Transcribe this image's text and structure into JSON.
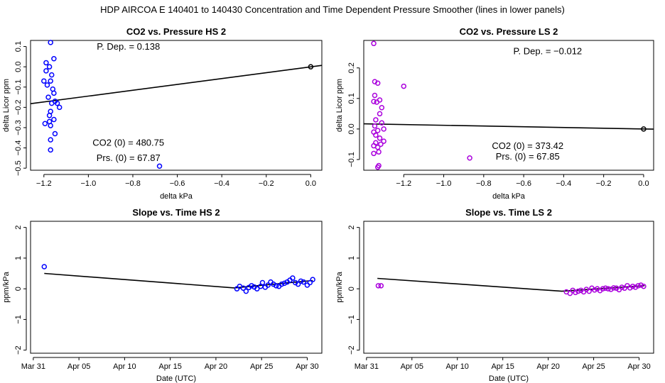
{
  "figure_title": "HDP   AIRCOA E   140401 to 140430   Concentration and Time Dependent Pressure Smoother (lines in lower panels)",
  "chart_data": [
    {
      "id": "p1",
      "type": "scatter",
      "title": "CO2 vs. Pressure HS 2",
      "xlabel": "delta kPa",
      "ylabel": "delta Licor ppm",
      "xlim": [
        -1.26,
        0.05
      ],
      "ylim": [
        -0.51,
        0.13
      ],
      "xticks": [
        -1.2,
        -1.0,
        -0.8,
        -0.6,
        -0.4,
        -0.2,
        0.0
      ],
      "xtick_labels": [
        "−1.2",
        "−1.0",
        "−0.8",
        "−0.6",
        "−0.4",
        "−0.2",
        "0.0"
      ],
      "yticks": [
        -0.5,
        -0.4,
        -0.3,
        -0.2,
        -0.1,
        0.0,
        0.1
      ],
      "ytick_labels": [
        "−0.5",
        "−0.4",
        "−0.3",
        "−0.2",
        "−0.1",
        "0.0",
        "0.1"
      ],
      "point_color": "#0000ff",
      "points": [
        [
          -1.17,
          0.12
        ],
        [
          -1.155,
          0.04
        ],
        [
          -1.19,
          0.02
        ],
        [
          -1.175,
          0.0
        ],
        [
          -1.19,
          -0.02
        ],
        [
          -1.165,
          -0.04
        ],
        [
          -1.2,
          -0.07
        ],
        [
          -1.17,
          -0.07
        ],
        [
          -1.185,
          -0.09
        ],
        [
          -1.16,
          -0.11
        ],
        [
          -1.155,
          -0.13
        ],
        [
          -1.18,
          -0.15
        ],
        [
          -1.15,
          -0.17
        ],
        [
          -1.165,
          -0.18
        ],
        [
          -1.14,
          -0.18
        ],
        [
          -1.13,
          -0.2
        ],
        [
          -1.17,
          -0.22
        ],
        [
          -1.175,
          -0.24
        ],
        [
          -1.155,
          -0.26
        ],
        [
          -1.175,
          -0.27
        ],
        [
          -1.195,
          -0.28
        ],
        [
          -1.17,
          -0.29
        ],
        [
          -1.15,
          -0.33
        ],
        [
          -1.17,
          -0.36
        ],
        [
          -1.17,
          -0.41
        ],
        [
          -0.68,
          -0.49
        ],
        [
          0.0,
          0.0
        ]
      ],
      "fit_line": [
        [
          -1.26,
          -0.182
        ],
        [
          0.05,
          0.007
        ]
      ],
      "annotations": [
        {
          "text": "P. Dep. =  0.138",
          "x": -0.82,
          "y": 0.085
        },
        {
          "text": "CO2 (0) =  480.75",
          "x": -0.82,
          "y": -0.39
        },
        {
          "text": "Prs. (0) =  67.87",
          "x": -0.82,
          "y": -0.465
        }
      ]
    },
    {
      "id": "p2",
      "type": "scatter",
      "title": "CO2 vs. Pressure LS 2",
      "xlabel": "delta kPa",
      "ylabel": "delta Licor ppm",
      "xlim": [
        -1.4,
        0.05
      ],
      "ylim": [
        -0.135,
        0.29
      ],
      "xticks": [
        -1.2,
        -1.0,
        -0.8,
        -0.6,
        -0.4,
        -0.2,
        0.0
      ],
      "xtick_labels": [
        "−1.2",
        "−1.0",
        "−0.8",
        "−0.6",
        "−0.4",
        "−0.2",
        "0.0"
      ],
      "yticks": [
        -0.1,
        0.0,
        0.1,
        0.2
      ],
      "ytick_labels": [
        "−0.1",
        "0.0",
        "0.1",
        "0.2"
      ],
      "point_color": "#aa00dd",
      "points": [
        [
          -1.35,
          0.28
        ],
        [
          -1.345,
          0.155
        ],
        [
          -1.33,
          0.15
        ],
        [
          -1.2,
          0.14
        ],
        [
          -1.345,
          0.11
        ],
        [
          -1.32,
          0.095
        ],
        [
          -1.35,
          0.09
        ],
        [
          -1.335,
          0.088
        ],
        [
          -1.31,
          0.07
        ],
        [
          -1.32,
          0.05
        ],
        [
          -1.34,
          0.03
        ],
        [
          -1.31,
          0.02
        ],
        [
          -1.345,
          0.01
        ],
        [
          -1.3,
          0.0
        ],
        [
          -1.33,
          -0.005
        ],
        [
          -1.35,
          -0.01
        ],
        [
          -1.34,
          -0.02
        ],
        [
          -1.32,
          -0.03
        ],
        [
          -1.3,
          -0.04
        ],
        [
          -1.34,
          -0.045
        ],
        [
          -1.315,
          -0.05
        ],
        [
          -1.35,
          -0.055
        ],
        [
          -1.33,
          -0.06
        ],
        [
          -1.35,
          -0.08
        ],
        [
          -1.325,
          -0.075
        ],
        [
          -0.87,
          -0.095
        ],
        [
          -1.325,
          -0.12
        ],
        [
          -1.33,
          -0.125
        ],
        [
          0.0,
          0.0
        ]
      ],
      "fit_line": [
        [
          -1.4,
          0.0168
        ],
        [
          0.05,
          -0.0006
        ]
      ],
      "annotations": [
        {
          "text": "P. Dep. =  −0.012",
          "x": -0.48,
          "y": 0.245
        },
        {
          "text": "CO2 (0) =  373.42",
          "x": -0.58,
          "y": -0.065
        },
        {
          "text": "Prs. (0) =  67.85",
          "x": -0.58,
          "y": -0.1
        }
      ]
    },
    {
      "id": "p3",
      "type": "scatter",
      "title": "Slope vs. Time HS 2",
      "xlabel": "Date (UTC)",
      "ylabel": "ppm/kPa",
      "xlim": [
        -0.3,
        31.6
      ],
      "ylim": [
        -2.1,
        2.2
      ],
      "xticks": [
        0,
        5,
        10,
        15,
        20,
        25,
        30
      ],
      "xtick_labels": [
        "Mar 31",
        "Apr 05",
        "Apr 10",
        "Apr 15",
        "Apr 20",
        "Apr 25",
        "Apr 30"
      ],
      "yticks": [
        -2,
        -1,
        0,
        1,
        2
      ],
      "ytick_labels": [
        "−2",
        "−1",
        "0",
        "1",
        "2"
      ],
      "point_color": "#0000ff",
      "points": [
        [
          1.2,
          0.72
        ],
        [
          22.3,
          0.0
        ],
        [
          22.6,
          0.08
        ],
        [
          23.0,
          0.02
        ],
        [
          23.3,
          -0.08
        ],
        [
          23.6,
          0.04
        ],
        [
          23.9,
          0.1
        ],
        [
          24.2,
          0.06
        ],
        [
          24.5,
          0.0
        ],
        [
          24.9,
          0.08
        ],
        [
          25.1,
          0.2
        ],
        [
          25.4,
          0.05
        ],
        [
          25.7,
          0.12
        ],
        [
          26.0,
          0.22
        ],
        [
          26.3,
          0.15
        ],
        [
          26.6,
          0.1
        ],
        [
          26.9,
          0.08
        ],
        [
          27.2,
          0.15
        ],
        [
          27.5,
          0.18
        ],
        [
          27.8,
          0.22
        ],
        [
          28.1,
          0.28
        ],
        [
          28.4,
          0.35
        ],
        [
          28.7,
          0.2
        ],
        [
          29.0,
          0.15
        ],
        [
          29.3,
          0.25
        ],
        [
          29.6,
          0.22
        ],
        [
          30.0,
          0.12
        ],
        [
          30.3,
          0.2
        ],
        [
          30.6,
          0.3
        ]
      ],
      "fit_line": [
        [
          1.2,
          0.5
        ],
        [
          22.0,
          0.03
        ],
        [
          30.6,
          0.27
        ]
      ],
      "annotations": []
    },
    {
      "id": "p4",
      "type": "scatter",
      "title": "Slope vs. Time LS 2",
      "xlabel": "Date (UTC)",
      "ylabel": "ppm/kPa",
      "xlim": [
        -0.3,
        31.6
      ],
      "ylim": [
        -2.1,
        2.2
      ],
      "xticks": [
        0,
        5,
        10,
        15,
        20,
        25,
        30
      ],
      "xtick_labels": [
        "Mar 31",
        "Apr 05",
        "Apr 10",
        "Apr 15",
        "Apr 20",
        "Apr 25",
        "Apr 30"
      ],
      "yticks": [
        -2,
        -1,
        0,
        1,
        2
      ],
      "ytick_labels": [
        "−2",
        "−1",
        "0",
        "1",
        "2"
      ],
      "point_color": "#aa00dd",
      "points": [
        [
          1.3,
          0.1
        ],
        [
          1.6,
          0.1
        ],
        [
          22.0,
          -0.1
        ],
        [
          22.4,
          -0.15
        ],
        [
          22.7,
          -0.05
        ],
        [
          23.0,
          -0.12
        ],
        [
          23.3,
          -0.08
        ],
        [
          23.6,
          -0.05
        ],
        [
          23.9,
          -0.1
        ],
        [
          24.2,
          -0.02
        ],
        [
          24.5,
          -0.08
        ],
        [
          24.8,
          0.02
        ],
        [
          25.1,
          -0.04
        ],
        [
          25.4,
          0.0
        ],
        [
          25.7,
          -0.06
        ],
        [
          26.0,
          0.0
        ],
        [
          26.3,
          0.02
        ],
        [
          26.6,
          0.0
        ],
        [
          26.9,
          -0.02
        ],
        [
          27.2,
          0.03
        ],
        [
          27.5,
          0.02
        ],
        [
          27.8,
          -0.03
        ],
        [
          28.1,
          0.05
        ],
        [
          28.4,
          0.02
        ],
        [
          28.7,
          0.1
        ],
        [
          29.0,
          0.03
        ],
        [
          29.3,
          0.08
        ],
        [
          29.6,
          0.05
        ],
        [
          29.9,
          0.1
        ],
        [
          30.2,
          0.12
        ],
        [
          30.5,
          0.08
        ]
      ],
      "fit_line": [
        [
          1.2,
          0.34
        ],
        [
          21.5,
          -0.08
        ],
        [
          30.6,
          0.1
        ]
      ],
      "annotations": []
    }
  ]
}
